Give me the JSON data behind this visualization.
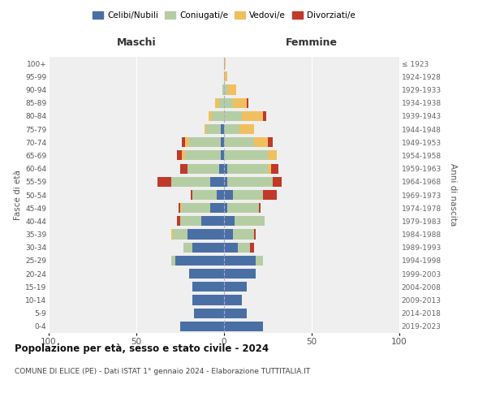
{
  "age_groups": [
    "0-4",
    "5-9",
    "10-14",
    "15-19",
    "20-24",
    "25-29",
    "30-34",
    "35-39",
    "40-44",
    "45-49",
    "50-54",
    "55-59",
    "60-64",
    "65-69",
    "70-74",
    "75-79",
    "80-84",
    "85-89",
    "90-94",
    "95-99",
    "100+"
  ],
  "birth_years": [
    "2019-2023",
    "2014-2018",
    "2009-2013",
    "2004-2008",
    "1999-2003",
    "1994-1998",
    "1989-1993",
    "1984-1988",
    "1979-1983",
    "1974-1978",
    "1969-1973",
    "1964-1968",
    "1959-1963",
    "1954-1958",
    "1949-1953",
    "1944-1948",
    "1939-1943",
    "1934-1938",
    "1929-1933",
    "1924-1928",
    "≤ 1923"
  ],
  "maschi": {
    "celibi": [
      25,
      17,
      18,
      18,
      20,
      28,
      18,
      21,
      13,
      8,
      4,
      8,
      3,
      2,
      2,
      2,
      0,
      0,
      0,
      0,
      0
    ],
    "coniugati": [
      0,
      0,
      0,
      0,
      0,
      2,
      5,
      8,
      12,
      16,
      14,
      22,
      18,
      20,
      18,
      8,
      7,
      3,
      1,
      0,
      0
    ],
    "vedovi": [
      0,
      0,
      0,
      0,
      0,
      0,
      0,
      1,
      0,
      1,
      0,
      0,
      0,
      2,
      2,
      1,
      2,
      2,
      0,
      0,
      0
    ],
    "divorziati": [
      0,
      0,
      0,
      0,
      0,
      0,
      0,
      0,
      2,
      1,
      1,
      8,
      4,
      3,
      2,
      0,
      0,
      0,
      0,
      0,
      0
    ]
  },
  "femmine": {
    "nubili": [
      22,
      13,
      10,
      13,
      18,
      18,
      8,
      5,
      6,
      2,
      5,
      2,
      2,
      0,
      0,
      0,
      0,
      0,
      0,
      0,
      0
    ],
    "coniugate": [
      0,
      0,
      0,
      0,
      0,
      4,
      7,
      12,
      17,
      18,
      17,
      26,
      23,
      25,
      17,
      9,
      10,
      5,
      2,
      0,
      0
    ],
    "vedove": [
      0,
      0,
      0,
      0,
      0,
      0,
      0,
      0,
      0,
      0,
      0,
      0,
      2,
      5,
      8,
      8,
      12,
      8,
      5,
      2,
      1
    ],
    "divorziate": [
      0,
      0,
      0,
      0,
      0,
      0,
      2,
      1,
      0,
      1,
      8,
      5,
      4,
      0,
      3,
      0,
      2,
      1,
      0,
      0,
      0
    ]
  },
  "colors": {
    "celibi_nubili": "#4a6fa5",
    "coniugati": "#b5cda3",
    "vedovi": "#f0c060",
    "divorziati": "#c0392b"
  },
  "xlim": 100,
  "title1": "Popolazione per età, sesso e stato civile - 2024",
  "title2": "COMUNE DI ELICE (PE) - Dati ISTAT 1° gennaio 2024 - Elaborazione TUTTITALIA.IT",
  "ylabel_left": "Fasce di età",
  "ylabel_right": "Anni di nascita",
  "xlabel_left": "Maschi",
  "xlabel_right": "Femmine",
  "bg_color": "#efefef",
  "legend_labels": [
    "Celibi/Nubili",
    "Coniugati/e",
    "Vedovi/e",
    "Divorziati/e"
  ]
}
